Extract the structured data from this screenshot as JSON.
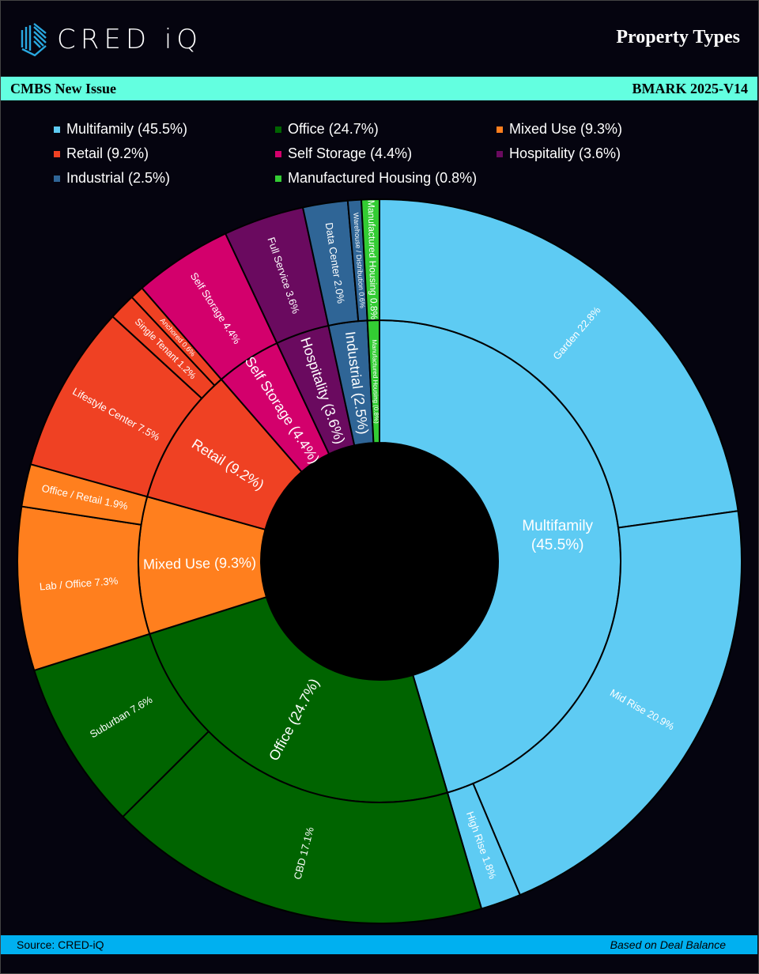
{
  "header": {
    "logo_text": "CRED iQ",
    "title": "Property Types"
  },
  "band": {
    "left": "CMBS New Issue",
    "right": "BMARK 2025-V14"
  },
  "footer": {
    "source": "Source:  CRED-iQ",
    "note": "Based on Deal Balance"
  },
  "legend": [
    {
      "label": "Multifamily (45.5%)",
      "color": "#5ecbf3"
    },
    {
      "label": "Office (24.7%)",
      "color": "#006400"
    },
    {
      "label": "Mixed Use (9.3%)",
      "color": "#ff7f1e"
    },
    {
      "label": "Retail (9.2%)",
      "color": "#ef4123"
    },
    {
      "label": "Self Storage (4.4%)",
      "color": "#d3006c"
    },
    {
      "label": "Hospitality (3.6%)",
      "color": "#6a0a5f"
    },
    {
      "label": "Industrial (2.5%)",
      "color": "#2f6596"
    },
    {
      "label": "Manufactured Housing (0.8%)",
      "color": "#33cc33"
    }
  ],
  "chart_data": {
    "type": "sunburst",
    "title": "Property Types",
    "categories": [
      {
        "name": "Multifamily",
        "label": "Multifamily (45.5%)",
        "value": 45.5,
        "color": "#5ecbf3",
        "children": [
          {
            "label": "Garden 22.8%",
            "value": 22.8
          },
          {
            "label": "Mid Rise 20.9%",
            "value": 20.9
          },
          {
            "label": "High Rise 1.8%",
            "value": 1.8
          }
        ]
      },
      {
        "name": "Office",
        "label": "Office (24.7%)",
        "value": 24.7,
        "color": "#006400",
        "children": [
          {
            "label": "CBD 17.1%",
            "value": 17.1
          },
          {
            "label": "Suburban 7.6%",
            "value": 7.6
          }
        ]
      },
      {
        "name": "Mixed Use",
        "label": "Mixed Use (9.3%)",
        "value": 9.3,
        "color": "#ff7f1e",
        "children": [
          {
            "label": "Lab / Office 7.3%",
            "value": 7.3
          },
          {
            "label": "Office / Retail 1.9%",
            "value": 1.9
          }
        ]
      },
      {
        "name": "Retail",
        "label": "Retail (9.2%)",
        "value": 9.2,
        "color": "#ef4123",
        "children": [
          {
            "label": "Lifestyle Center 7.5%",
            "value": 7.5
          },
          {
            "label": "Single Tenant 1.2%",
            "value": 1.2
          },
          {
            "label": "Anchored 0.6%",
            "value": 0.6
          }
        ]
      },
      {
        "name": "Self Storage",
        "label": "Self Storage (4.4%)",
        "value": 4.4,
        "color": "#d3006c",
        "children": [
          {
            "label": "Self Storage 4.4%",
            "value": 4.4
          }
        ]
      },
      {
        "name": "Hospitality",
        "label": "Hospitality (3.6%)",
        "value": 3.6,
        "color": "#6a0a5f",
        "children": [
          {
            "label": "Full Service 3.6%",
            "value": 3.6
          }
        ]
      },
      {
        "name": "Industrial",
        "label": "Industrial (2.5%)",
        "value": 2.5,
        "color": "#2f6596",
        "children": [
          {
            "label": "Data Center 2.0%",
            "value": 2.0
          },
          {
            "label": "Warehouse / Distribution 0.6%",
            "value": 0.6
          }
        ]
      },
      {
        "name": "Manufactured Housing",
        "label": "Manufactured Housing (0.8%)",
        "value": 0.8,
        "color": "#33cc33",
        "children": [
          {
            "label": "Manufactured Housing 0.8%",
            "value": 0.8
          }
        ]
      }
    ]
  }
}
